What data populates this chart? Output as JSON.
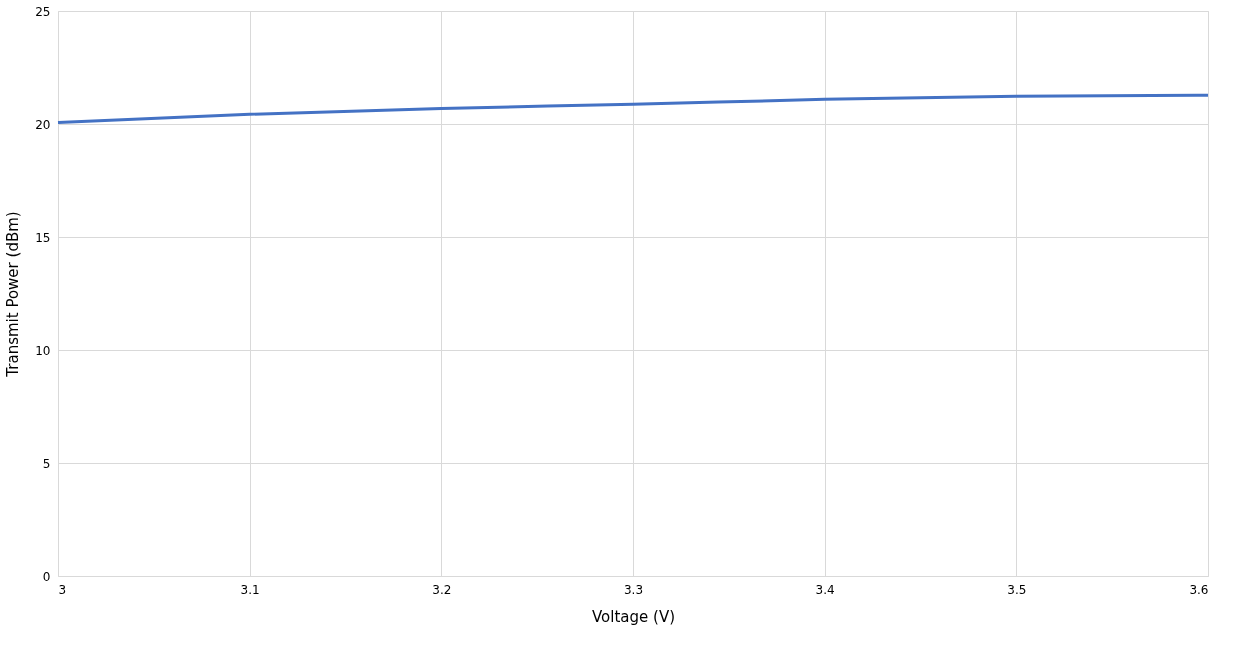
{
  "chart_data": {
    "type": "line",
    "xlabel": "Voltage (V)",
    "ylabel": "Transmit Power (dBm)",
    "x": [
      3.0,
      3.1,
      3.2,
      3.3,
      3.4,
      3.5,
      3.6
    ],
    "series": [
      {
        "color": "#4472c4",
        "values": [
          20.07,
          20.43,
          20.69,
          20.87,
          21.09,
          21.23,
          21.27
        ]
      }
    ],
    "xlim": [
      3,
      3.6
    ],
    "xticks": [
      3,
      3.1,
      3.2,
      3.3,
      3.4,
      3.5,
      3.6
    ],
    "ylim": [
      0,
      25
    ],
    "yticks": [
      0,
      5,
      10,
      15,
      20,
      25
    ],
    "grid": true,
    "marker": "none",
    "line_style": "solid"
  }
}
